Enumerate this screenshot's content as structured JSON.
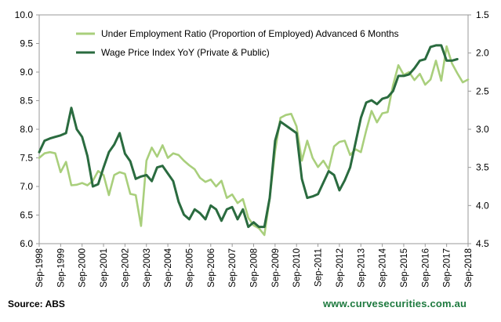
{
  "source_label": "Source: ABS",
  "website": "www.curvesecurities.com.au",
  "chart_data": {
    "type": "line",
    "title": "",
    "xlabel": "",
    "ylabel_left": "",
    "ylabel_right": "",
    "left_axis": {
      "min": 6.0,
      "max": 10.0,
      "ticks": [
        "6.0",
        "6.5",
        "7.0",
        "7.5",
        "8.0",
        "8.5",
        "9.0",
        "9.5",
        "10.0"
      ]
    },
    "right_axis": {
      "min": 1.5,
      "max": 4.5,
      "inverted": true,
      "ticks": [
        "1.5",
        "2.0",
        "2.5",
        "3.0",
        "3.5",
        "4.0",
        "4.5"
      ]
    },
    "x_range": [
      1998.67,
      2018.67
    ],
    "x_ticks": [
      "Sep-1998",
      "Sep-1999",
      "Sep-2000",
      "Sep-2001",
      "Sep-2002",
      "Sep-2003",
      "Sep-2004",
      "Sep-2005",
      "Sep-2006",
      "Sep-2007",
      "Sep-2008",
      "Sep-2009",
      "Sep-2010",
      "Sep-2011",
      "Sep-2012",
      "Sep-2013",
      "Sep-2014",
      "Sep-2015",
      "Sep-2016",
      "Sep-2017",
      "Sep-2018"
    ],
    "grid": false,
    "legend_position": "top-center",
    "series": [
      {
        "name": "Under Employment Ratio (Proportion of Employed) Advanced 6 Months",
        "axis": "left",
        "color": "#a9cf7c",
        "x": [
          1998.67,
          1998.92,
          1999.17,
          1999.42,
          1999.67,
          1999.92,
          2000.17,
          2000.42,
          2000.67,
          2000.92,
          2001.17,
          2001.42,
          2001.67,
          2001.92,
          2002.17,
          2002.42,
          2002.67,
          2002.92,
          2003.17,
          2003.42,
          2003.67,
          2003.92,
          2004.17,
          2004.42,
          2004.67,
          2004.92,
          2005.17,
          2005.42,
          2005.67,
          2005.92,
          2006.17,
          2006.42,
          2006.67,
          2006.92,
          2007.17,
          2007.42,
          2007.67,
          2007.92,
          2008.17,
          2008.42,
          2008.67,
          2008.92,
          2009.17,
          2009.42,
          2009.67,
          2009.92,
          2010.17,
          2010.42,
          2010.67,
          2010.92,
          2011.17,
          2011.42,
          2011.67,
          2011.92,
          2012.17,
          2012.42,
          2012.67,
          2012.92,
          2013.17,
          2013.42,
          2013.67,
          2013.92,
          2014.17,
          2014.42,
          2014.67,
          2014.92,
          2015.17,
          2015.42,
          2015.67,
          2015.92,
          2016.17,
          2016.42,
          2016.67,
          2016.92,
          2017.17,
          2017.42,
          2017.67,
          2017.92,
          2018.17,
          2018.42,
          2018.67
        ],
        "values": [
          7.5,
          7.58,
          7.6,
          7.58,
          7.25,
          7.43,
          7.02,
          7.03,
          7.06,
          7.02,
          7.1,
          7.27,
          7.2,
          6.85,
          7.2,
          7.25,
          7.22,
          6.87,
          6.85,
          6.31,
          7.45,
          7.68,
          7.52,
          7.72,
          7.5,
          7.58,
          7.55,
          7.45,
          7.37,
          7.3,
          7.15,
          7.08,
          7.12,
          7.0,
          7.1,
          6.8,
          6.86,
          6.71,
          6.78,
          6.45,
          6.32,
          6.27,
          6.15,
          6.79,
          7.62,
          8.2,
          8.25,
          8.27,
          8.05,
          7.45,
          7.8,
          7.5,
          7.34,
          7.45,
          7.3,
          7.7,
          7.78,
          7.8,
          7.55,
          7.65,
          7.6,
          7.98,
          8.32,
          8.12,
          8.28,
          8.3,
          8.77,
          9.12,
          8.95,
          9.0,
          8.86,
          8.97,
          8.78,
          8.87,
          9.2,
          8.85,
          9.45,
          9.15,
          8.98,
          8.82,
          8.87
        ]
      },
      {
        "name": "Wage Price Index YoY (Private & Public)",
        "axis": "right",
        "color": "#2a6b3f",
        "x": [
          1998.67,
          1998.92,
          1999.17,
          1999.42,
          1999.67,
          1999.92,
          2000.17,
          2000.42,
          2000.67,
          2000.92,
          2001.17,
          2001.42,
          2001.67,
          2001.92,
          2002.17,
          2002.42,
          2002.67,
          2002.92,
          2003.17,
          2003.42,
          2003.67,
          2003.92,
          2004.17,
          2004.42,
          2004.67,
          2004.92,
          2005.17,
          2005.42,
          2005.67,
          2005.92,
          2006.17,
          2006.42,
          2006.67,
          2006.92,
          2007.17,
          2007.42,
          2007.67,
          2007.92,
          2008.17,
          2008.42,
          2008.67,
          2008.92,
          2009.17,
          2009.42,
          2009.67,
          2009.92,
          2010.17,
          2010.42,
          2010.67,
          2010.92,
          2011.17,
          2011.42,
          2011.67,
          2011.92,
          2012.17,
          2012.42,
          2012.67,
          2012.92,
          2013.17,
          2013.42,
          2013.67,
          2013.92,
          2014.17,
          2014.42,
          2014.67,
          2014.92,
          2015.17,
          2015.42,
          2015.67,
          2015.92,
          2016.17,
          2016.42,
          2016.67,
          2016.92,
          2017.17,
          2017.42,
          2017.67,
          2017.92,
          2018.17
        ],
        "values": [
          3.3,
          3.15,
          3.12,
          3.1,
          3.08,
          3.05,
          2.72,
          3.0,
          3.1,
          3.35,
          3.75,
          3.72,
          3.5,
          3.3,
          3.2,
          3.05,
          3.32,
          3.42,
          3.65,
          3.62,
          3.6,
          3.68,
          3.5,
          3.48,
          3.58,
          3.68,
          3.95,
          4.12,
          4.18,
          4.05,
          4.1,
          4.18,
          4.0,
          4.05,
          4.2,
          4.05,
          4.02,
          4.18,
          4.05,
          4.28,
          4.22,
          4.28,
          4.28,
          3.9,
          3.15,
          2.9,
          2.95,
          3.0,
          3.05,
          3.65,
          3.9,
          3.88,
          3.85,
          3.7,
          3.55,
          3.6,
          3.8,
          3.67,
          3.5,
          3.18,
          2.85,
          2.65,
          2.62,
          2.67,
          2.6,
          2.58,
          2.5,
          2.3,
          2.3,
          2.28,
          2.2,
          2.1,
          2.08,
          1.92,
          1.9,
          1.9,
          2.1,
          2.1,
          2.08
        ]
      }
    ]
  }
}
